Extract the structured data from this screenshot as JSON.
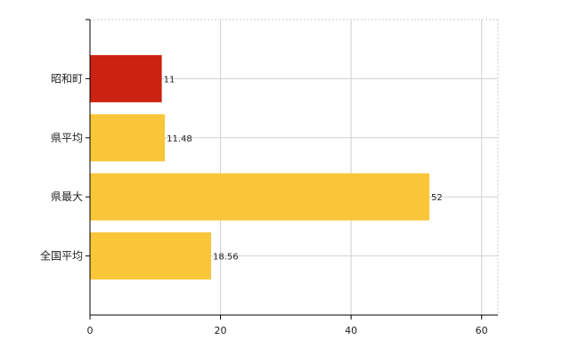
{
  "chart_data": {
    "type": "bar",
    "orientation": "horizontal",
    "categories": [
      "昭和町",
      "県平均",
      "県最大",
      "全国平均"
    ],
    "values": [
      11,
      11.48,
      52,
      18.56
    ],
    "data_labels": [
      "11",
      "11.48",
      "52",
      "18.56"
    ],
    "colors": [
      "#cc2211",
      "#f9c63a",
      "#f9c63a",
      "#f9c63a"
    ],
    "xlim": [
      0,
      62.5
    ],
    "x_ticks": [
      0,
      20,
      40,
      60
    ],
    "x_tick_labels": [
      "0",
      "20",
      "40",
      "60"
    ],
    "grid": true,
    "legend": "none"
  }
}
